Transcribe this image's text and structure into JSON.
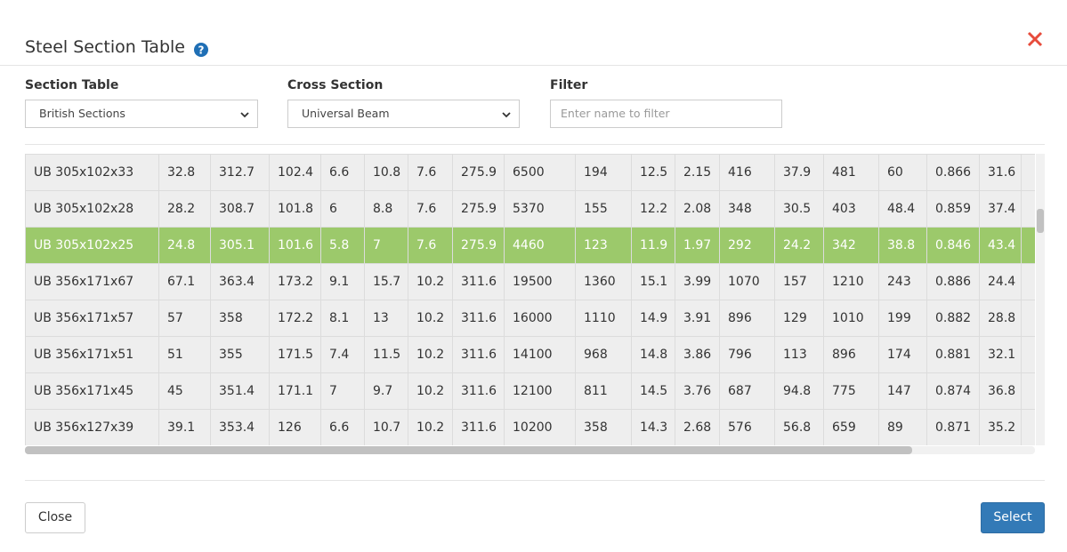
{
  "header": {
    "title": "Steel Section Table"
  },
  "filters": [
    {
      "label": "Section Table",
      "value": "British Sections"
    },
    {
      "label": "Cross Section",
      "value": "Universal Beam"
    },
    {
      "label": "Filter",
      "placeholder": "Enter name to filter"
    }
  ],
  "table": {
    "selected_row": 2,
    "rows": [
      [
        "UB 305x102x33",
        "32.8",
        "312.7",
        "102.4",
        "6.6",
        "10.8",
        "7.6",
        "275.9",
        "6500",
        "194",
        "12.5",
        "2.15",
        "416",
        "37.9",
        "481",
        "60",
        "0.866",
        "31.6"
      ],
      [
        "UB 305x102x28",
        "28.2",
        "308.7",
        "101.8",
        "6",
        "8.8",
        "7.6",
        "275.9",
        "5370",
        "155",
        "12.2",
        "2.08",
        "348",
        "30.5",
        "403",
        "48.4",
        "0.859",
        "37.4"
      ],
      [
        "UB 305x102x25",
        "24.8",
        "305.1",
        "101.6",
        "5.8",
        "7",
        "7.6",
        "275.9",
        "4460",
        "123",
        "11.9",
        "1.97",
        "292",
        "24.2",
        "342",
        "38.8",
        "0.846",
        "43.4"
      ],
      [
        "UB 356x171x67",
        "67.1",
        "363.4",
        "173.2",
        "9.1",
        "15.7",
        "10.2",
        "311.6",
        "19500",
        "1360",
        "15.1",
        "3.99",
        "1070",
        "157",
        "1210",
        "243",
        "0.886",
        "24.4"
      ],
      [
        "UB 356x171x57",
        "57",
        "358",
        "172.2",
        "8.1",
        "13",
        "10.2",
        "311.6",
        "16000",
        "1110",
        "14.9",
        "3.91",
        "896",
        "129",
        "1010",
        "199",
        "0.882",
        "28.8"
      ],
      [
        "UB 356x171x51",
        "51",
        "355",
        "171.5",
        "7.4",
        "11.5",
        "10.2",
        "311.6",
        "14100",
        "968",
        "14.8",
        "3.86",
        "796",
        "113",
        "896",
        "174",
        "0.881",
        "32.1"
      ],
      [
        "UB 356x171x45",
        "45",
        "351.4",
        "171.1",
        "7",
        "9.7",
        "10.2",
        "311.6",
        "12100",
        "811",
        "14.5",
        "3.76",
        "687",
        "94.8",
        "775",
        "147",
        "0.874",
        "36.8"
      ],
      [
        "UB 356x127x39",
        "39.1",
        "353.4",
        "126",
        "6.6",
        "10.7",
        "10.2",
        "311.6",
        "10200",
        "358",
        "14.3",
        "2.68",
        "576",
        "56.8",
        "659",
        "89",
        "0.871",
        "35.2"
      ]
    ]
  },
  "footer": {
    "close": "Close",
    "select": "Select"
  }
}
